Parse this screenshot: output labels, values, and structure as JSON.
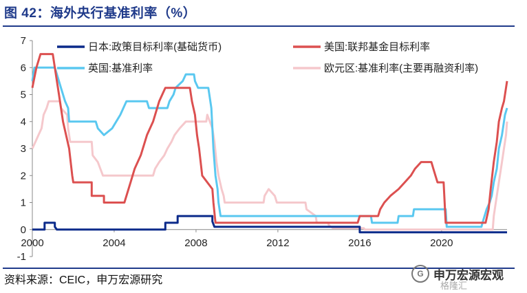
{
  "title": "图 42：海外央行基准利率（%）",
  "source": "资料来源：CEIC，申万宏源研究",
  "watermark": {
    "name": "申万宏源宏观",
    "sub": "格隆汇",
    "badge": "G"
  },
  "colors": {
    "title": "#1f3a8a",
    "axis": "#888888"
  },
  "chart_data": {
    "type": "line",
    "title": "海外央行基准利率（%）",
    "xlabel": "",
    "ylabel": "",
    "xlim": [
      2000,
      2023.2
    ],
    "ylim": [
      -1,
      7
    ],
    "xticks": [
      2000,
      2004,
      2008,
      2012,
      2016,
      2020
    ],
    "yticks": [
      -1,
      0,
      1,
      2,
      3,
      4,
      5,
      6,
      7
    ],
    "grid": false,
    "legend": "top",
    "series": [
      {
        "name": "日本:政策目标利率(基础货币)",
        "color": "#0b2a8a",
        "points": [
          [
            2000.0,
            0.0
          ],
          [
            2000.6,
            0.0
          ],
          [
            2000.6,
            0.25
          ],
          [
            2001.1,
            0.25
          ],
          [
            2001.1,
            0.1
          ],
          [
            2001.2,
            0.0
          ],
          [
            2006.5,
            0.0
          ],
          [
            2006.5,
            0.25
          ],
          [
            2007.1,
            0.25
          ],
          [
            2007.1,
            0.5
          ],
          [
            2008.8,
            0.5
          ],
          [
            2008.8,
            0.3
          ],
          [
            2008.9,
            0.1
          ],
          [
            2013.3,
            0.1
          ],
          [
            2016.0,
            0.1
          ],
          [
            2016.0,
            -0.1
          ],
          [
            2023.2,
            -0.1
          ]
        ]
      },
      {
        "name": "美国:联邦基金目标利率",
        "color": "#dc5050",
        "points": [
          [
            2000.0,
            5.25
          ],
          [
            2000.2,
            6.0
          ],
          [
            2000.4,
            6.5
          ],
          [
            2001.0,
            6.5
          ],
          [
            2001.1,
            6.0
          ],
          [
            2001.3,
            5.0
          ],
          [
            2001.5,
            4.0
          ],
          [
            2001.8,
            3.0
          ],
          [
            2001.95,
            2.0
          ],
          [
            2002.0,
            1.75
          ],
          [
            2002.9,
            1.75
          ],
          [
            2002.9,
            1.25
          ],
          [
            2003.5,
            1.25
          ],
          [
            2003.5,
            1.0
          ],
          [
            2004.5,
            1.0
          ],
          [
            2004.6,
            1.25
          ],
          [
            2004.8,
            1.75
          ],
          [
            2005.0,
            2.25
          ],
          [
            2005.3,
            2.75
          ],
          [
            2005.6,
            3.5
          ],
          [
            2005.9,
            4.0
          ],
          [
            2006.2,
            4.75
          ],
          [
            2006.5,
            5.25
          ],
          [
            2007.7,
            5.25
          ],
          [
            2007.8,
            4.75
          ],
          [
            2007.95,
            4.25
          ],
          [
            2008.05,
            3.5
          ],
          [
            2008.15,
            3.0
          ],
          [
            2008.3,
            2.0
          ],
          [
            2008.8,
            1.5
          ],
          [
            2008.85,
            1.0
          ],
          [
            2008.95,
            0.25
          ],
          [
            2015.9,
            0.25
          ],
          [
            2016.0,
            0.5
          ],
          [
            2016.9,
            0.5
          ],
          [
            2017.0,
            0.75
          ],
          [
            2017.2,
            1.0
          ],
          [
            2017.5,
            1.25
          ],
          [
            2017.9,
            1.5
          ],
          [
            2018.2,
            1.75
          ],
          [
            2018.5,
            2.0
          ],
          [
            2018.7,
            2.25
          ],
          [
            2019.0,
            2.5
          ],
          [
            2019.5,
            2.5
          ],
          [
            2019.6,
            2.25
          ],
          [
            2019.7,
            2.0
          ],
          [
            2019.8,
            1.75
          ],
          [
            2020.1,
            1.75
          ],
          [
            2020.15,
            1.0
          ],
          [
            2020.2,
            0.25
          ],
          [
            2022.15,
            0.25
          ],
          [
            2022.3,
            0.75
          ],
          [
            2022.4,
            1.5
          ],
          [
            2022.55,
            2.5
          ],
          [
            2022.7,
            3.25
          ],
          [
            2022.8,
            4.0
          ],
          [
            2022.95,
            4.5
          ],
          [
            2023.05,
            4.75
          ],
          [
            2023.15,
            5.25
          ],
          [
            2023.2,
            5.5
          ]
        ]
      },
      {
        "name": "英国:基准利率",
        "color": "#5ac8f0",
        "points": [
          [
            2000.0,
            5.5
          ],
          [
            2000.1,
            6.0
          ],
          [
            2001.1,
            6.0
          ],
          [
            2001.2,
            5.75
          ],
          [
            2001.4,
            5.25
          ],
          [
            2001.6,
            4.75
          ],
          [
            2001.75,
            4.5
          ],
          [
            2001.8,
            4.0
          ],
          [
            2003.1,
            4.0
          ],
          [
            2003.2,
            3.75
          ],
          [
            2003.5,
            3.5
          ],
          [
            2003.9,
            3.75
          ],
          [
            2004.1,
            4.0
          ],
          [
            2004.3,
            4.25
          ],
          [
            2004.45,
            4.5
          ],
          [
            2004.6,
            4.75
          ],
          [
            2005.6,
            4.75
          ],
          [
            2005.7,
            4.5
          ],
          [
            2006.6,
            4.5
          ],
          [
            2006.7,
            4.75
          ],
          [
            2006.9,
            5.0
          ],
          [
            2007.0,
            5.25
          ],
          [
            2007.35,
            5.5
          ],
          [
            2007.5,
            5.75
          ],
          [
            2007.9,
            5.75
          ],
          [
            2007.95,
            5.5
          ],
          [
            2008.1,
            5.25
          ],
          [
            2008.6,
            5.25
          ],
          [
            2008.75,
            4.5
          ],
          [
            2008.85,
            3.0
          ],
          [
            2008.95,
            2.0
          ],
          [
            2009.05,
            1.5
          ],
          [
            2009.1,
            1.0
          ],
          [
            2009.2,
            0.5
          ],
          [
            2016.55,
            0.5
          ],
          [
            2016.6,
            0.25
          ],
          [
            2017.85,
            0.25
          ],
          [
            2017.9,
            0.5
          ],
          [
            2018.6,
            0.5
          ],
          [
            2018.65,
            0.75
          ],
          [
            2020.2,
            0.75
          ],
          [
            2020.25,
            0.1
          ],
          [
            2021.95,
            0.1
          ],
          [
            2022.0,
            0.25
          ],
          [
            2022.1,
            0.5
          ],
          [
            2022.2,
            0.75
          ],
          [
            2022.35,
            1.0
          ],
          [
            2022.45,
            1.25
          ],
          [
            2022.55,
            1.75
          ],
          [
            2022.7,
            2.25
          ],
          [
            2022.8,
            3.0
          ],
          [
            2022.95,
            3.5
          ],
          [
            2023.05,
            4.0
          ],
          [
            2023.1,
            4.25
          ],
          [
            2023.2,
            4.5
          ]
        ]
      },
      {
        "name": "欧元区:基准利率(主要再融资利率)",
        "color": "#f5c8cc",
        "points": [
          [
            2000.0,
            3.0
          ],
          [
            2000.15,
            3.25
          ],
          [
            2000.3,
            3.5
          ],
          [
            2000.45,
            3.75
          ],
          [
            2000.55,
            4.25
          ],
          [
            2000.7,
            4.5
          ],
          [
            2000.8,
            4.75
          ],
          [
            2001.35,
            4.75
          ],
          [
            2001.4,
            4.5
          ],
          [
            2001.7,
            4.25
          ],
          [
            2001.75,
            3.75
          ],
          [
            2001.85,
            3.25
          ],
          [
            2002.9,
            3.25
          ],
          [
            2002.95,
            2.75
          ],
          [
            2003.2,
            2.5
          ],
          [
            2003.45,
            2.0
          ],
          [
            2005.9,
            2.0
          ],
          [
            2006.0,
            2.25
          ],
          [
            2006.2,
            2.5
          ],
          [
            2006.45,
            2.75
          ],
          [
            2006.6,
            3.0
          ],
          [
            2006.8,
            3.25
          ],
          [
            2006.95,
            3.5
          ],
          [
            2007.2,
            3.75
          ],
          [
            2007.5,
            4.0
          ],
          [
            2008.5,
            4.0
          ],
          [
            2008.55,
            4.25
          ],
          [
            2008.8,
            3.75
          ],
          [
            2008.9,
            3.25
          ],
          [
            2009.0,
            2.5
          ],
          [
            2009.1,
            2.0
          ],
          [
            2009.25,
            1.5
          ],
          [
            2009.35,
            1.25
          ],
          [
            2009.4,
            1.0
          ],
          [
            2011.3,
            1.0
          ],
          [
            2011.35,
            1.25
          ],
          [
            2011.55,
            1.5
          ],
          [
            2011.85,
            1.25
          ],
          [
            2011.95,
            1.0
          ],
          [
            2013.35,
            1.0
          ],
          [
            2013.4,
            0.75
          ],
          [
            2013.85,
            0.5
          ],
          [
            2013.9,
            0.25
          ],
          [
            2014.45,
            0.25
          ],
          [
            2014.5,
            0.15
          ],
          [
            2014.7,
            0.05
          ],
          [
            2016.2,
            0.05
          ],
          [
            2016.25,
            0.0
          ],
          [
            2022.5,
            0.0
          ],
          [
            2022.55,
            0.5
          ],
          [
            2022.7,
            1.25
          ],
          [
            2022.85,
            2.0
          ],
          [
            2022.95,
            2.5
          ],
          [
            2023.05,
            3.0
          ],
          [
            2023.15,
            3.5
          ],
          [
            2023.2,
            4.0
          ]
        ]
      }
    ]
  }
}
